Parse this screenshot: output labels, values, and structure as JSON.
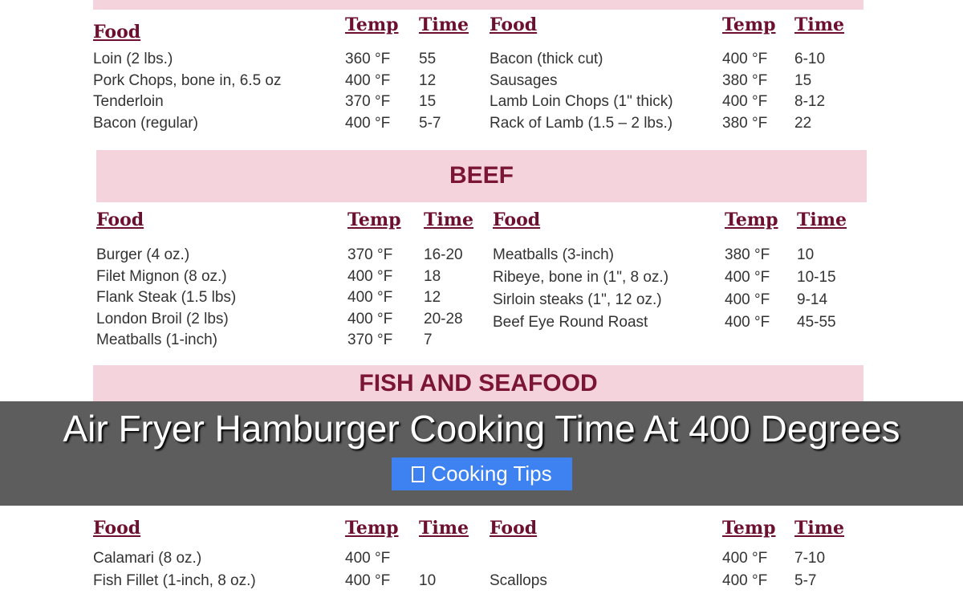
{
  "pork": {
    "headers": [
      "Food",
      "Temp",
      "Time"
    ],
    "left": [
      [
        "Loin (2 lbs.)",
        "360 °F",
        "55"
      ],
      [
        "Pork Chops, bone in, 6.5 oz",
        "400 °F",
        "12"
      ],
      [
        "Tenderloin",
        "370 °F",
        "15"
      ],
      [
        "Bacon (regular)",
        "400 °F",
        "5-7"
      ]
    ],
    "right": [
      [
        "Bacon (thick cut)",
        "400 °F",
        "6-10"
      ],
      [
        "Sausages",
        "380 °F",
        "15"
      ],
      [
        "Lamb Loin Chops (1\" thick)",
        "400 °F",
        "8-12"
      ],
      [
        "Rack of Lamb (1.5 – 2 lbs.)",
        "380 °F",
        "22"
      ]
    ]
  },
  "beef": {
    "title": "BEEF",
    "headers": [
      "Food",
      "Temp",
      "Time"
    ],
    "left": [
      [
        "Burger (4 oz.)",
        "370 °F",
        "16-20"
      ],
      [
        "Filet Mignon (8 oz.)",
        "400 °F",
        "18"
      ],
      [
        "Flank Steak (1.5 lbs)",
        "400 °F",
        "12"
      ],
      [
        "London Broil (2 lbs)",
        "400 °F",
        "20-28"
      ],
      [
        "Meatballs (1-inch)",
        "370 °F",
        "7"
      ]
    ],
    "right": [
      [
        "Meatballs (3-inch)",
        "380 °F",
        "10"
      ],
      [
        "Ribeye, bone in (1\", 8 oz.)",
        "400 °F",
        "10-15"
      ],
      [
        "Sirloin steaks (1\", 12 oz.)",
        "400 °F",
        "9-14"
      ],
      [
        "Beef Eye Round Roast",
        "400 °F",
        "45-55"
      ]
    ]
  },
  "fish": {
    "title": "FISH AND SEAFOOD",
    "headers": [
      "Food",
      "Temp",
      "Time"
    ],
    "left": [
      [
        "Calamari (8 oz.)",
        "400 °F",
        ""
      ],
      [
        "Fish Fillet (1-inch, 8 oz.)",
        "400 °F",
        "10"
      ]
    ],
    "right": [
      [
        "",
        "400 °F",
        "7-10"
      ],
      [
        "Scallops",
        "400 °F",
        "5-7"
      ]
    ]
  },
  "overlay": {
    "title": "Air Fryer Hamburger Cooking Time At 400 Degrees",
    "category_label": "Cooking Tips",
    "category_icon": "folder-icon",
    "accent": "#3d82f0"
  }
}
